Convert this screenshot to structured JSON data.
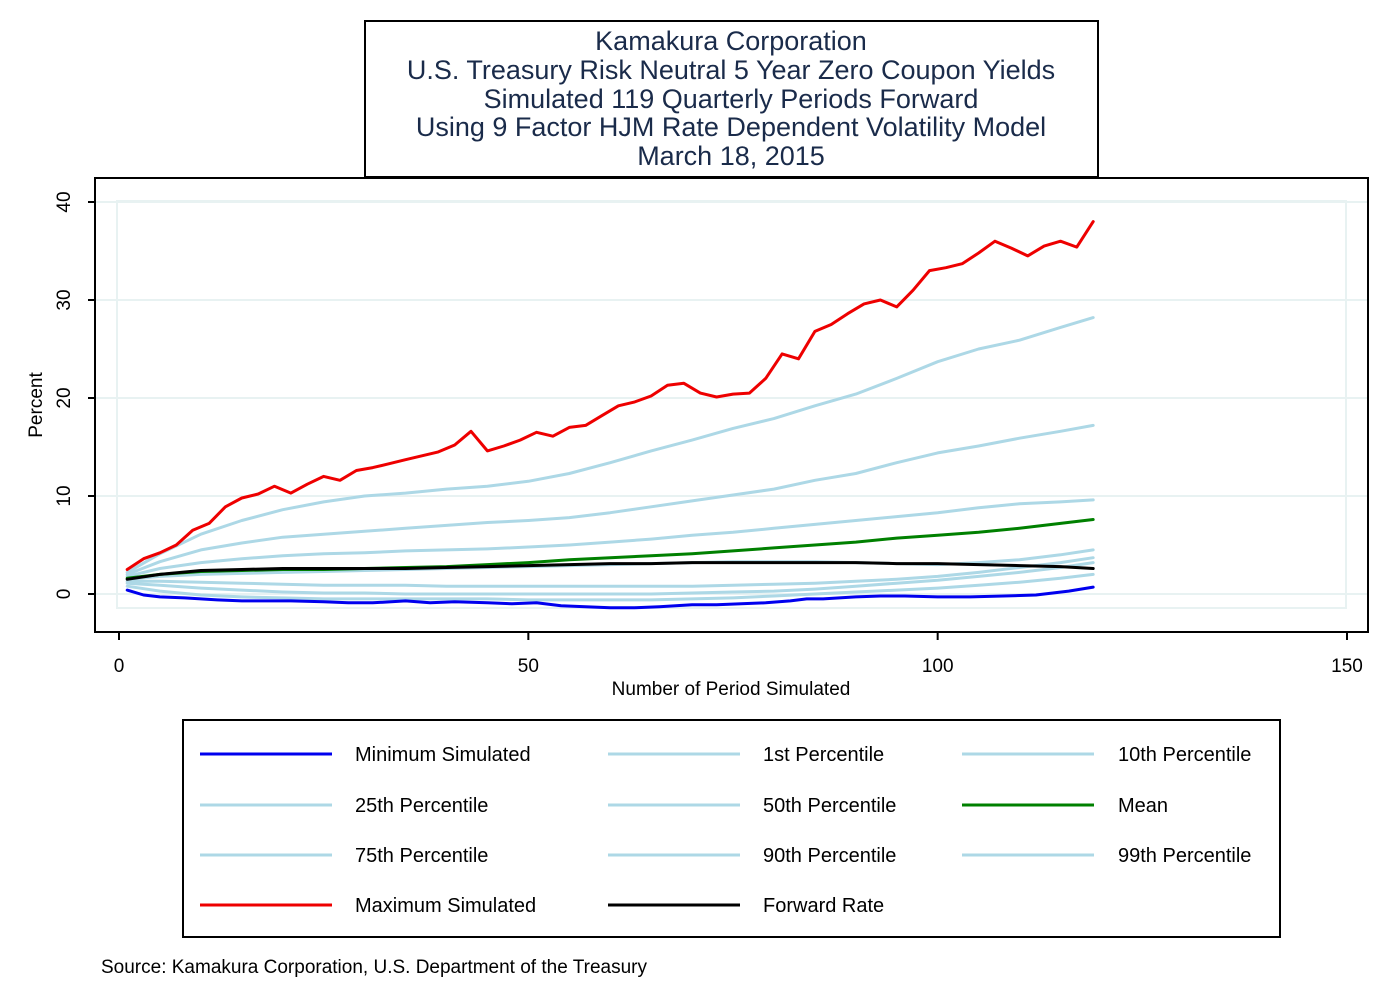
{
  "chart_data": {
    "type": "line",
    "title_lines": [
      "Kamakura Corporation",
      "U.S. Treasury Risk Neutral 5 Year Zero Coupon Yields",
      "Simulated 119 Quarterly Periods Forward",
      "Using 9 Factor HJM Rate Dependent Volatility Model",
      "March 18, 2015"
    ],
    "xlabel": "Number of Period Simulated",
    "ylabel": "Percent",
    "xlim": [
      -3,
      151
    ],
    "ylim": [
      -4,
      42
    ],
    "x_ticks": [
      0,
      50,
      100,
      150
    ],
    "y_ticks": [
      0,
      10,
      20,
      30,
      40
    ],
    "grid": true,
    "source": "Source: Kamakura Corporation, U.S. Department of the Treasury",
    "colors": {
      "minimum": "#0000ee",
      "percentile": "#add8e6",
      "mean": "#008000",
      "maximum": "#ee0000",
      "forward": "#000000",
      "title_text": "#1a2b4a",
      "grid": "#e8f2f2"
    },
    "series": [
      {
        "name": "Minimum Simulated",
        "color": "#0000ee",
        "x": [
          1,
          3,
          5,
          8,
          12,
          15,
          18,
          21,
          25,
          28,
          31,
          35,
          38,
          41,
          45,
          48,
          51,
          54,
          57,
          60,
          63,
          66,
          70,
          73,
          76,
          79,
          82,
          84,
          86,
          88,
          90,
          93,
          96,
          100,
          104,
          108,
          112,
          116,
          119
        ],
        "y": [
          0.4,
          -0.1,
          -0.3,
          -0.4,
          -0.6,
          -0.7,
          -0.7,
          -0.7,
          -0.8,
          -0.9,
          -0.9,
          -0.7,
          -0.9,
          -0.8,
          -0.9,
          -1.0,
          -0.9,
          -1.2,
          -1.3,
          -1.4,
          -1.4,
          -1.3,
          -1.1,
          -1.1,
          -1.0,
          -0.9,
          -0.7,
          -0.5,
          -0.5,
          -0.4,
          -0.3,
          -0.2,
          -0.2,
          -0.3,
          -0.3,
          -0.2,
          -0.1,
          0.3,
          0.7
        ]
      },
      {
        "name": "1st Percentile",
        "color": "#add8e6",
        "x": [
          1,
          5,
          10,
          15,
          20,
          25,
          30,
          35,
          40,
          45,
          50,
          55,
          60,
          65,
          70,
          75,
          80,
          85,
          90,
          95,
          100,
          105,
          110,
          115,
          119
        ],
        "y": [
          0.8,
          0.3,
          -0.1,
          -0.3,
          -0.4,
          -0.5,
          -0.5,
          -0.5,
          -0.5,
          -0.5,
          -0.6,
          -0.6,
          -0.6,
          -0.6,
          -0.5,
          -0.4,
          -0.2,
          0.0,
          0.2,
          0.4,
          0.6,
          0.9,
          1.2,
          1.6,
          2.0
        ]
      },
      {
        "name": "10th Percentile",
        "color": "#add8e6",
        "x": [
          1,
          5,
          10,
          15,
          20,
          25,
          30,
          35,
          40,
          45,
          50,
          55,
          60,
          65,
          70,
          75,
          80,
          85,
          90,
          95,
          100,
          105,
          110,
          115,
          119
        ],
        "y": [
          1.1,
          0.9,
          0.6,
          0.4,
          0.2,
          0.1,
          0.1,
          0.0,
          0.0,
          0.0,
          0.0,
          0.0,
          0.0,
          0.0,
          0.1,
          0.2,
          0.3,
          0.5,
          0.8,
          1.1,
          1.4,
          1.8,
          2.2,
          2.7,
          3.2
        ]
      },
      {
        "name": "25th Percentile",
        "color": "#add8e6",
        "x": [
          1,
          5,
          10,
          15,
          20,
          25,
          30,
          35,
          40,
          45,
          50,
          55,
          60,
          65,
          70,
          75,
          80,
          85,
          90,
          95,
          100,
          105,
          110,
          115,
          119
        ],
        "y": [
          1.3,
          1.3,
          1.2,
          1.1,
          1.0,
          0.9,
          0.9,
          0.9,
          0.8,
          0.8,
          0.8,
          0.8,
          0.8,
          0.8,
          0.8,
          0.9,
          1.0,
          1.1,
          1.3,
          1.5,
          1.8,
          2.2,
          2.7,
          3.2,
          3.7
        ]
      },
      {
        "name": "50th Percentile",
        "color": "#add8e6",
        "x": [
          1,
          5,
          10,
          15,
          20,
          25,
          30,
          35,
          40,
          45,
          50,
          55,
          60,
          65,
          70,
          75,
          80,
          85,
          90,
          95,
          100,
          105,
          110,
          115,
          119
        ],
        "y": [
          1.5,
          1.8,
          2.0,
          2.1,
          2.2,
          2.3,
          2.4,
          2.5,
          2.6,
          2.7,
          2.8,
          2.9,
          3.0,
          3.1,
          3.2,
          3.3,
          3.3,
          3.3,
          3.2,
          3.1,
          3.0,
          3.2,
          3.5,
          4.0,
          4.5
        ]
      },
      {
        "name": "Mean",
        "color": "#008000",
        "x": [
          1,
          5,
          10,
          15,
          20,
          25,
          30,
          35,
          40,
          45,
          50,
          55,
          60,
          65,
          70,
          75,
          80,
          85,
          90,
          95,
          100,
          105,
          110,
          115,
          119
        ],
        "y": [
          1.6,
          2.0,
          2.3,
          2.4,
          2.5,
          2.5,
          2.6,
          2.7,
          2.8,
          3.0,
          3.2,
          3.5,
          3.7,
          3.9,
          4.1,
          4.4,
          4.7,
          5.0,
          5.3,
          5.7,
          6.0,
          6.3,
          6.7,
          7.2,
          7.6
        ]
      },
      {
        "name": "75th Percentile",
        "color": "#add8e6",
        "x": [
          1,
          5,
          10,
          15,
          20,
          25,
          30,
          35,
          40,
          45,
          50,
          55,
          60,
          65,
          70,
          75,
          80,
          85,
          90,
          95,
          100,
          105,
          110,
          115,
          119
        ],
        "y": [
          1.8,
          2.6,
          3.2,
          3.6,
          3.9,
          4.1,
          4.2,
          4.4,
          4.5,
          4.6,
          4.8,
          5.0,
          5.3,
          5.6,
          6.0,
          6.3,
          6.7,
          7.1,
          7.5,
          7.9,
          8.3,
          8.8,
          9.2,
          9.4,
          9.6
        ]
      },
      {
        "name": "90th Percentile",
        "color": "#add8e6",
        "x": [
          1,
          5,
          10,
          15,
          20,
          25,
          30,
          35,
          40,
          45,
          50,
          55,
          60,
          65,
          70,
          75,
          80,
          85,
          90,
          95,
          100,
          105,
          110,
          115,
          119
        ],
        "y": [
          2.0,
          3.3,
          4.5,
          5.2,
          5.8,
          6.1,
          6.4,
          6.7,
          7.0,
          7.3,
          7.5,
          7.8,
          8.3,
          8.9,
          9.5,
          10.1,
          10.7,
          11.6,
          12.3,
          13.4,
          14.4,
          15.1,
          15.9,
          16.6,
          17.2
        ]
      },
      {
        "name": "99th Percentile",
        "color": "#add8e6",
        "x": [
          1,
          5,
          10,
          15,
          20,
          25,
          30,
          35,
          40,
          45,
          50,
          55,
          60,
          65,
          70,
          75,
          80,
          85,
          90,
          95,
          100,
          105,
          110,
          115,
          119
        ],
        "y": [
          2.2,
          4.1,
          6.1,
          7.5,
          8.6,
          9.4,
          10.0,
          10.3,
          10.7,
          11.0,
          11.5,
          12.3,
          13.4,
          14.6,
          15.7,
          16.9,
          17.9,
          19.2,
          20.4,
          22.0,
          23.7,
          25.0,
          25.9,
          27.2,
          28.2
        ]
      },
      {
        "name": "Maximum Simulated",
        "color": "#ee0000",
        "x": [
          1,
          3,
          5,
          7,
          9,
          11,
          13,
          15,
          17,
          19,
          21,
          23,
          25,
          27,
          29,
          31,
          33,
          35,
          37,
          39,
          41,
          43,
          45,
          47,
          49,
          51,
          53,
          55,
          57,
          59,
          61,
          63,
          65,
          67,
          69,
          71,
          73,
          75,
          77,
          79,
          81,
          83,
          85,
          87,
          89,
          91,
          93,
          95,
          97,
          99,
          101,
          103,
          105,
          107,
          109,
          111,
          113,
          115,
          117,
          119
        ],
        "y": [
          2.5,
          3.6,
          4.2,
          5.0,
          6.5,
          7.2,
          8.9,
          9.8,
          10.2,
          11.0,
          10.3,
          11.2,
          12.0,
          11.6,
          12.6,
          12.9,
          13.3,
          13.7,
          14.1,
          14.5,
          15.2,
          16.6,
          14.6,
          15.1,
          15.7,
          16.5,
          16.1,
          17.0,
          17.2,
          18.2,
          19.2,
          19.6,
          20.2,
          21.3,
          21.5,
          20.5,
          20.1,
          20.4,
          20.5,
          22.0,
          24.5,
          24.0,
          26.8,
          27.5,
          28.6,
          29.6,
          30.0,
          29.3,
          31.0,
          33.0,
          33.3,
          33.7,
          34.8,
          36.0,
          35.3,
          34.5,
          35.5,
          36.0,
          35.4,
          38.0
        ]
      },
      {
        "name": "Forward Rate",
        "color": "#000000",
        "x": [
          1,
          5,
          10,
          15,
          20,
          25,
          30,
          35,
          40,
          45,
          50,
          55,
          60,
          65,
          70,
          75,
          80,
          85,
          90,
          95,
          100,
          105,
          110,
          115,
          119
        ],
        "y": [
          1.5,
          2.0,
          2.4,
          2.5,
          2.6,
          2.6,
          2.6,
          2.6,
          2.7,
          2.8,
          2.9,
          3.0,
          3.1,
          3.1,
          3.2,
          3.2,
          3.2,
          3.2,
          3.2,
          3.1,
          3.1,
          3.0,
          2.9,
          2.8,
          2.6
        ]
      }
    ],
    "legend": {
      "position": "bottom",
      "columns": 3,
      "items": [
        "Minimum Simulated",
        "1st Percentile",
        "10th Percentile",
        "25th Percentile",
        "50th Percentile",
        "Mean",
        "75th Percentile",
        "90th Percentile",
        "99th Percentile",
        "Maximum Simulated",
        "Forward Rate"
      ]
    }
  }
}
